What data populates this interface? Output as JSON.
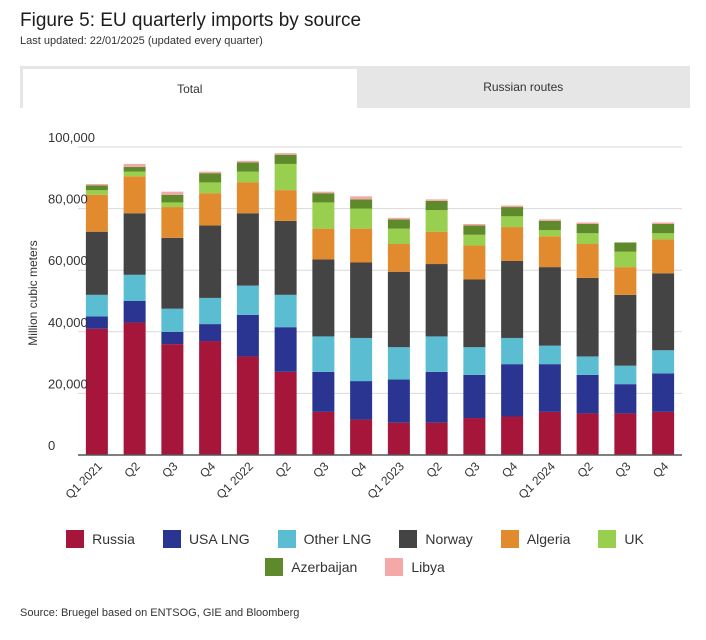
{
  "title": "Figure 5: EU quarterly imports by source",
  "subtitle": "Last updated: 22/01/2025 (updated every quarter)",
  "tabs": [
    {
      "label": "Total",
      "active": true
    },
    {
      "label": "Russian routes",
      "active": false
    }
  ],
  "source": "Source: Bruegel based on ENTSOG, GIE and Bloomberg",
  "chart_data": {
    "type": "bar",
    "stacked": true,
    "categories": [
      "Q1 2021",
      "Q2",
      "Q3",
      "Q4",
      "Q1 2022",
      "Q2",
      "Q3",
      "Q4",
      "Q1 2023",
      "Q2",
      "Q3",
      "Q4",
      "Q1 2024",
      "Q2",
      "Q3",
      "Q4"
    ],
    "ylabel": "Million cubic meters",
    "ylim": [
      0,
      100000
    ],
    "yticks": [
      0,
      20000,
      40000,
      60000,
      80000,
      100000
    ],
    "ytick_labels": [
      "0",
      "20,000",
      "40,000",
      "60,000",
      "80,000",
      "100,000"
    ],
    "grid": true,
    "legend_position": "bottom",
    "series": [
      {
        "name": "Russia",
        "color": "#a5163a",
        "values": [
          41000,
          43000,
          36000,
          37000,
          32000,
          27000,
          14000,
          11500,
          10500,
          10500,
          12000,
          12500,
          14000,
          13500,
          13500,
          14000
        ]
      },
      {
        "name": "USA LNG",
        "color": "#2a3592",
        "values": [
          4000,
          7000,
          4000,
          5500,
          13500,
          14500,
          13000,
          12500,
          14000,
          16500,
          14000,
          17000,
          15500,
          12500,
          9500,
          12500
        ]
      },
      {
        "name": "Other LNG",
        "color": "#5bbdd1",
        "values": [
          7000,
          8500,
          7500,
          8500,
          9500,
          10500,
          11500,
          14000,
          10500,
          11500,
          9000,
          8500,
          6000,
          6000,
          6000,
          7500
        ]
      },
      {
        "name": "Norway",
        "color": "#444444",
        "values": [
          20500,
          20000,
          23000,
          23500,
          23500,
          24000,
          25000,
          24500,
          24500,
          23500,
          22000,
          25000,
          25500,
          25500,
          23000,
          25000
        ]
      },
      {
        "name": "Algeria",
        "color": "#e28a2e",
        "values": [
          12000,
          12000,
          10000,
          10500,
          10000,
          10000,
          10000,
          11000,
          9000,
          10500,
          11000,
          11000,
          10000,
          11000,
          9000,
          11000
        ]
      },
      {
        "name": "UK",
        "color": "#98cf4e",
        "values": [
          1500,
          1500,
          1500,
          3500,
          3500,
          8500,
          8500,
          6500,
          5000,
          7000,
          3500,
          3500,
          2000,
          3500,
          5000,
          2000
        ]
      },
      {
        "name": "Azerbaijan",
        "color": "#5e8a2c",
        "values": [
          1500,
          1500,
          2500,
          3000,
          3000,
          3000,
          3000,
          3000,
          3000,
          3000,
          3000,
          3000,
          3000,
          3000,
          3000,
          3000
        ]
      },
      {
        "name": "Libya",
        "color": "#f4a9a8",
        "values": [
          500,
          1000,
          1000,
          500,
          500,
          500,
          500,
          1000,
          500,
          500,
          500,
          500,
          500,
          500,
          0,
          500
        ]
      }
    ]
  }
}
